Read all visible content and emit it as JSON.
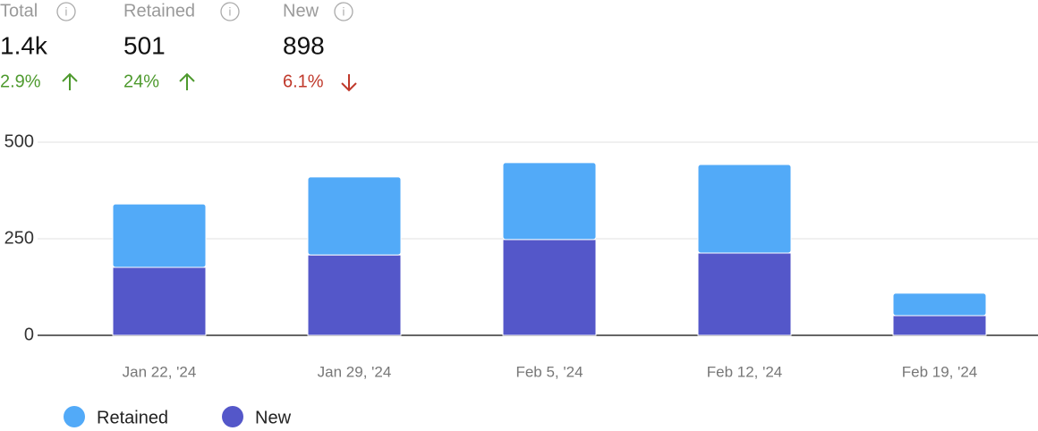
{
  "metrics": [
    {
      "label": "Total",
      "value": "1.4k",
      "change": "2.9%"
    },
    {
      "label": "Retained",
      "value": "501",
      "change": "24%"
    },
    {
      "label": "New",
      "value": "898",
      "change": "6.1%"
    }
  ],
  "chart_data": {
    "type": "stacked-bar",
    "categories": [
      "Jan 22, '24",
      "Jan 29, '24",
      "Feb 5, '24",
      "Feb 12, '24",
      "Feb 19, '24"
    ],
    "series": [
      {
        "name": "Retained",
        "color": "#52aaf8",
        "values": [
          164,
          202,
          199,
          229,
          58
        ]
      },
      {
        "name": "New",
        "color": "#5457c9",
        "values": [
          176,
          208,
          248,
          213,
          51
        ]
      }
    ],
    "ylim": [
      0,
      500
    ],
    "yticks": [
      0,
      250,
      500
    ],
    "grid": true
  }
}
